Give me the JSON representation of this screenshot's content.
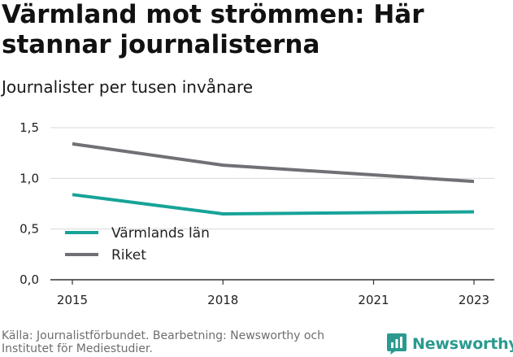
{
  "colors": {
    "varmland": "#17a398",
    "riket": "#707075",
    "grid": "#d9d9d9",
    "brand": "#2a9a8f"
  },
  "brand": {
    "name": "Newsworthy",
    "icon": "bar-chart-speech-bubble-icon"
  },
  "source_text": "Källa: Journalistförbundet. Bearbetning: Newsworthy och Institutet för Mediestudier.",
  "chart_data": {
    "type": "line",
    "title": "Värmland mot strömmen: Här stannar journalisterna",
    "subtitle": "Journalister per tusen invånare",
    "xlabel": "",
    "ylabel": "",
    "x": [
      2015,
      2018,
      2023
    ],
    "x_ticks": [
      "2015",
      "2018",
      "2021",
      "2023"
    ],
    "x_range": [
      2015,
      2023
    ],
    "y_ticks": [
      "0,0",
      "0,5",
      "1,0",
      "1,5"
    ],
    "ylim": [
      0,
      1.5
    ],
    "grid": true,
    "legend_position": "inside-bottom-left",
    "series": [
      {
        "name": "Värmlands län",
        "color": "#17a398",
        "values": [
          0.84,
          0.65,
          0.67
        ]
      },
      {
        "name": "Riket",
        "color": "#707075",
        "values": [
          1.34,
          1.13,
          0.97
        ]
      }
    ]
  }
}
